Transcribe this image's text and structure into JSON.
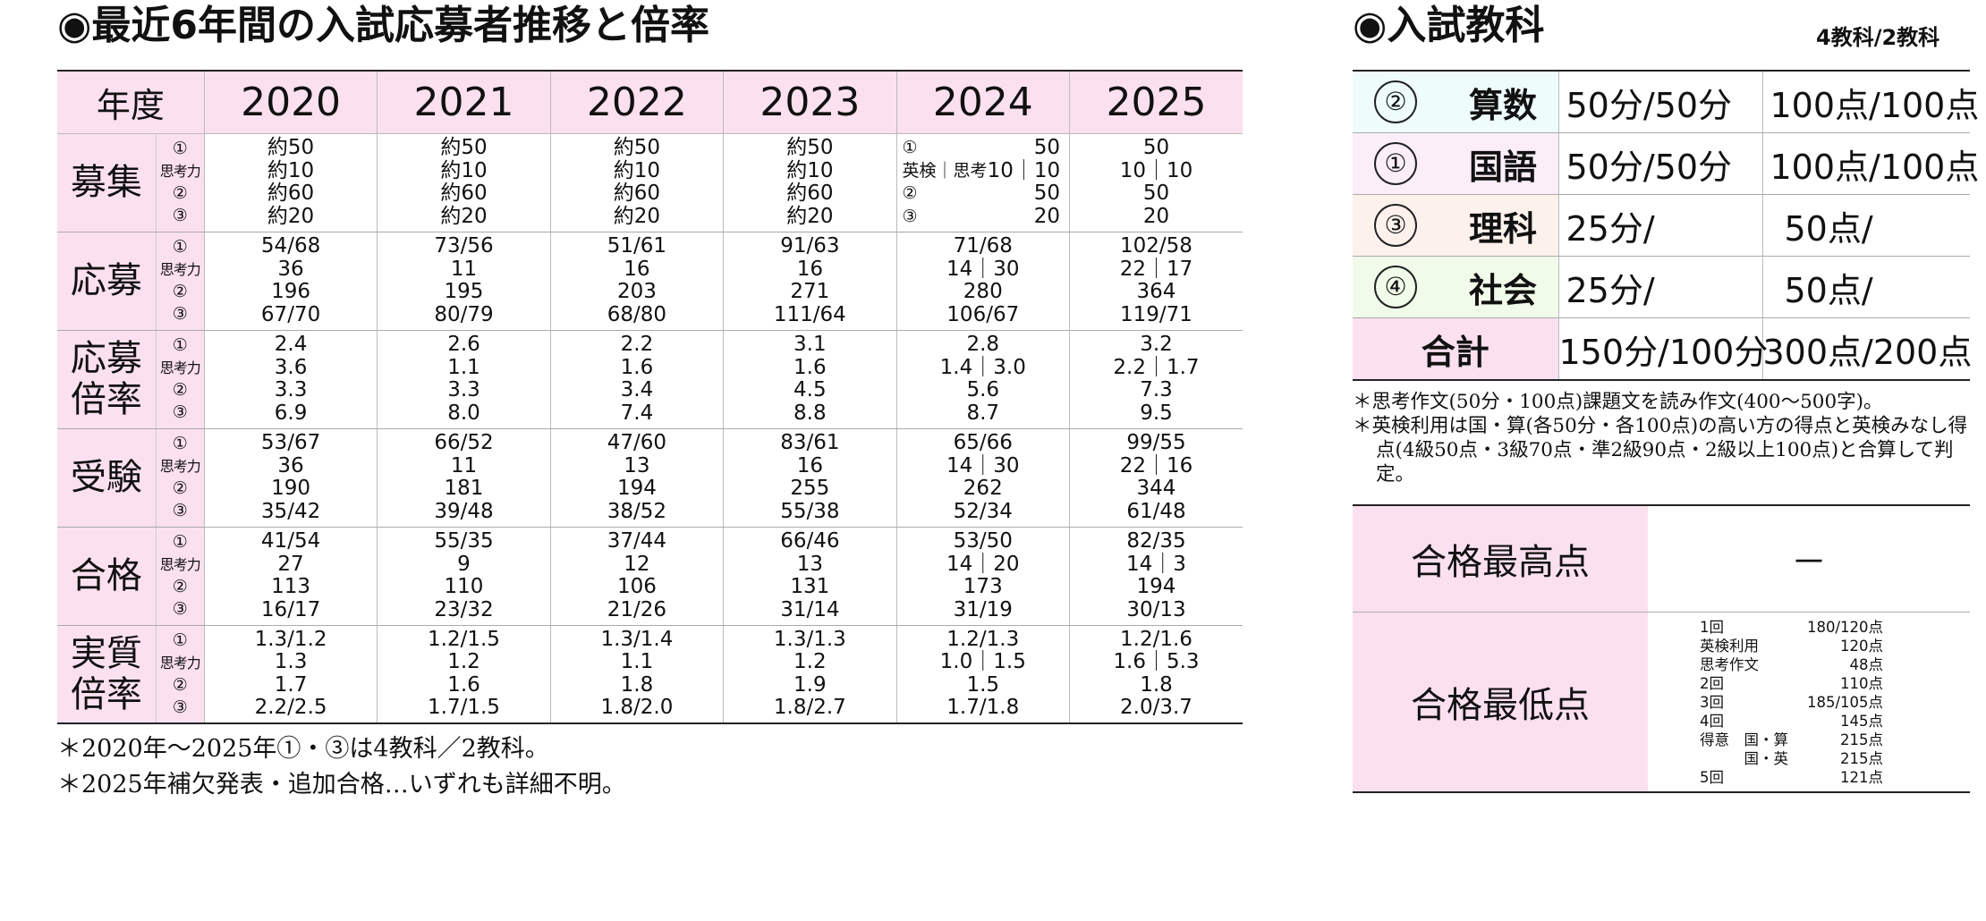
{
  "left": {
    "title": "◉最近6年間の入試応募者推移と倍率",
    "header_label": "年度",
    "years": [
      "2020",
      "2021",
      "2022",
      "2023",
      "2024",
      "2025"
    ],
    "rows": [
      {
        "label": "募集",
        "subs": [
          "①",
          "思考力",
          "②",
          "③"
        ],
        "values": [
          [
            "約50",
            "約10",
            "約60",
            "約20"
          ],
          [
            "約50",
            "約10",
            "約60",
            "約20"
          ],
          [
            "約50",
            "約10",
            "約60",
            "約20"
          ],
          [
            "約50",
            "約10",
            "約60",
            "約20"
          ],
          [
            "50",
            "10｜10",
            "50",
            "20"
          ],
          [
            "50",
            "10｜10",
            "50",
            "20"
          ]
        ]
      },
      {
        "label": "応募",
        "subs": [
          "①",
          "思考力",
          "②",
          "③"
        ],
        "values": [
          [
            "54/68",
            "36",
            "196",
            "67/70"
          ],
          [
            "73/56",
            "11",
            "195",
            "80/79"
          ],
          [
            "51/61",
            "16",
            "203",
            "68/80"
          ],
          [
            "91/63",
            "16",
            "271",
            "111/64"
          ],
          [
            "71/68",
            "14｜30",
            "280",
            "106/67"
          ],
          [
            "102/58",
            "22｜17",
            "364",
            "119/71"
          ]
        ]
      },
      {
        "label": "応募倍率",
        "subs": [
          "①",
          "思考力",
          "②",
          "③"
        ],
        "values": [
          [
            "2.4",
            "3.6",
            "3.3",
            "6.9"
          ],
          [
            "2.6",
            "1.1",
            "3.3",
            "8.0"
          ],
          [
            "2.2",
            "1.6",
            "3.4",
            "7.4"
          ],
          [
            "3.1",
            "1.6",
            "4.5",
            "8.8"
          ],
          [
            "2.8",
            "1.4｜3.0",
            "5.6",
            "8.7"
          ],
          [
            "3.2",
            "2.2｜1.7",
            "7.3",
            "9.5"
          ]
        ]
      },
      {
        "label": "受験",
        "subs": [
          "①",
          "思考力",
          "②",
          "③"
        ],
        "values": [
          [
            "53/67",
            "36",
            "190",
            "35/42"
          ],
          [
            "66/52",
            "11",
            "181",
            "39/48"
          ],
          [
            "47/60",
            "13",
            "194",
            "38/52"
          ],
          [
            "83/61",
            "16",
            "255",
            "55/38"
          ],
          [
            "65/66",
            "14｜30",
            "262",
            "52/34"
          ],
          [
            "99/55",
            "22｜16",
            "344",
            "61/48"
          ]
        ]
      },
      {
        "label": "合格",
        "subs": [
          "①",
          "思考力",
          "②",
          "③"
        ],
        "values": [
          [
            "41/54",
            "27",
            "113",
            "16/17"
          ],
          [
            "55/35",
            "9",
            "110",
            "23/32"
          ],
          [
            "37/44",
            "12",
            "106",
            "21/26"
          ],
          [
            "66/46",
            "13",
            "131",
            "31/14"
          ],
          [
            "53/50",
            "14｜20",
            "173",
            "31/19"
          ],
          [
            "82/35",
            "14｜3",
            "194",
            "30/13"
          ]
        ]
      },
      {
        "label": "実質倍率",
        "subs": [
          "①",
          "思考力",
          "②",
          "③"
        ],
        "values": [
          [
            "1.3/1.2",
            "1.3",
            "1.7",
            "2.2/2.5"
          ],
          [
            "1.2/1.5",
            "1.2",
            "1.6",
            "1.7/1.5"
          ],
          [
            "1.3/1.4",
            "1.1",
            "1.8",
            "1.8/2.0"
          ],
          [
            "1.3/1.3",
            "1.2",
            "1.9",
            "1.8/2.7"
          ],
          [
            "1.2/1.3",
            "1.0｜1.5",
            "1.5",
            "1.7/1.8"
          ],
          [
            "1.2/1.6",
            "1.6｜5.3",
            "1.8",
            "2.0/3.7"
          ]
        ]
      }
    ],
    "recruit_2024_labels": [
      "①",
      "英検｜思考",
      "②",
      "③"
    ],
    "notes": [
      "＊2020年～2025年①・③は4教科／2教科。",
      "＊2025年補欠発表・追加合格…いずれも詳細不明。"
    ]
  },
  "right": {
    "title": "◉入試教科",
    "subtitle": "4教科/2教科",
    "subjects": [
      {
        "num": "②",
        "name": "算数",
        "time": "50分/50分",
        "points": "100点/100点",
        "color": "#eefcfc"
      },
      {
        "num": "①",
        "name": "国語",
        "time": "50分/50分",
        "points": "100点/100点",
        "color": "#fbeef8"
      },
      {
        "num": "③",
        "name": "理科",
        "time": "25分/",
        "points": "50点/",
        "color": "#fdf1ec"
      },
      {
        "num": "④",
        "name": "社会",
        "time": "25分/",
        "points": "50点/",
        "color": "#f1fbe9"
      }
    ],
    "total": {
      "label": "合計",
      "time": "150分/100分",
      "points": "300点/200点",
      "color": "#fbe0f0"
    },
    "notes": [
      "＊思考作文(50分・100点)課題文を読み作文(400～500字)。",
      "＊英検利用は国・算(各50分・各100点)の高い方の得点と英検みなし得点(4級50点・3級70点・準2級90点・2級以上100点)と合算して判定。"
    ],
    "max_score": {
      "label": "合格最高点",
      "value": "－"
    },
    "min_score": {
      "label": "合格最低点",
      "items": [
        {
          "k": "1回",
          "v": "180/120点"
        },
        {
          "k": "英検利用",
          "v": "120点"
        },
        {
          "k": "思考作文",
          "v": "48点"
        },
        {
          "k": "2回",
          "v": "110点"
        },
        {
          "k": "3回",
          "v": "185/105点"
        },
        {
          "k": "4回",
          "v": "145点"
        },
        {
          "k": "得意　国・算",
          "v": "215点"
        },
        {
          "k": "　　　国・英",
          "v": "215点"
        },
        {
          "k": "5回",
          "v": "121点"
        }
      ]
    }
  }
}
